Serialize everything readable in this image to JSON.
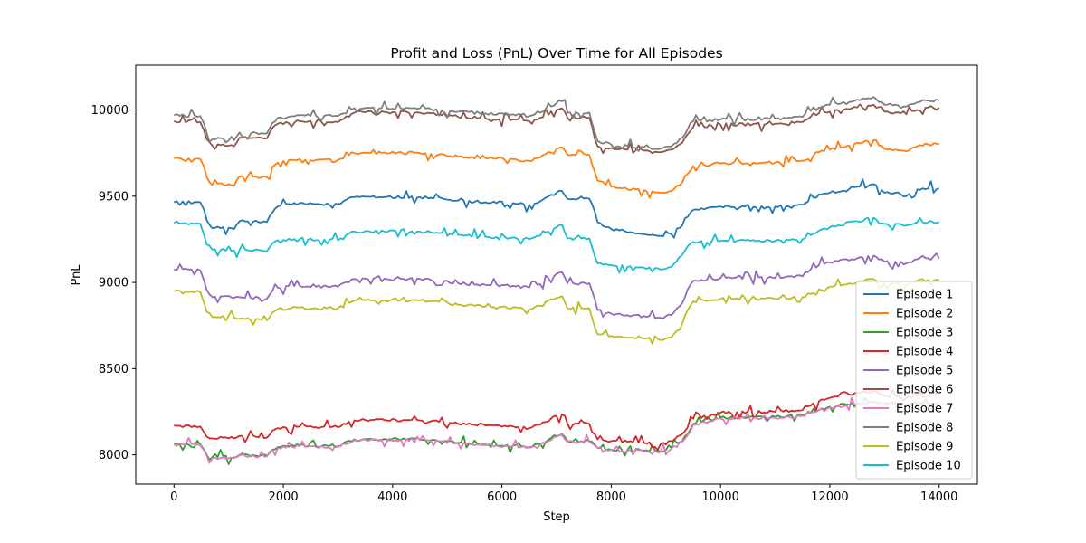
{
  "chart_data": {
    "type": "line",
    "title": "Profit and Loss (PnL) Over Time for All Episodes",
    "xlabel": "Step",
    "ylabel": "PnL",
    "xlim": [
      -700,
      14700
    ],
    "ylim": [
      7830,
      10260
    ],
    "xticks": [
      0,
      2000,
      4000,
      6000,
      8000,
      10000,
      12000,
      14000
    ],
    "yticks": [
      8000,
      8500,
      9000,
      9500,
      10000
    ],
    "grid": false,
    "legend_position": "lower-right",
    "series": [
      {
        "name": "Episode 1",
        "color": "#1f77b4",
        "x": [
          0,
          480,
          550,
          600,
          700,
          900,
          1100,
          1200,
          1700,
          1800,
          1900,
          2300,
          2600,
          3000,
          3300,
          3500,
          4500,
          4700,
          5200,
          5700,
          6200,
          6500,
          6700,
          7000,
          7100,
          7200,
          7600,
          7700,
          7750,
          8000,
          8300,
          8600,
          8900,
          9100,
          9300,
          9400,
          9500,
          10000,
          11000,
          11500,
          11800,
          12000,
          12500,
          12800,
          13000,
          13200,
          13400,
          13600,
          13800,
          14000
        ],
        "y": [
          9465,
          9465,
          9420,
          9360,
          9315,
          9320,
          9310,
          9355,
          9350,
          9405,
          9440,
          9460,
          9455,
          9455,
          9495,
          9497,
          9495,
          9490,
          9475,
          9465,
          9460,
          9450,
          9470,
          9520,
          9530,
          9485,
          9485,
          9410,
          9350,
          9310,
          9290,
          9280,
          9270,
          9280,
          9330,
          9380,
          9420,
          9440,
          9440,
          9450,
          9510,
          9520,
          9555,
          9570,
          9520,
          9520,
          9500,
          9540,
          9545,
          9545
        ]
      },
      {
        "name": "Episode 2",
        "color": "#ff7f0e",
        "x": [
          0,
          480,
          550,
          600,
          700,
          900,
          1100,
          1200,
          1700,
          1800,
          1900,
          2300,
          2600,
          3000,
          3300,
          3500,
          4500,
          4700,
          5200,
          5700,
          6200,
          6500,
          6700,
          7000,
          7100,
          7200,
          7600,
          7700,
          7750,
          8000,
          8300,
          8600,
          8900,
          9100,
          9300,
          9400,
          9500,
          10000,
          11000,
          11500,
          11800,
          12000,
          12500,
          12800,
          13000,
          13200,
          13400,
          13600,
          13800,
          14000
        ],
        "y": [
          9720,
          9715,
          9670,
          9610,
          9565,
          9570,
          9560,
          9615,
          9610,
          9670,
          9695,
          9715,
          9710,
          9710,
          9750,
          9752,
          9750,
          9745,
          9730,
          9720,
          9715,
          9705,
          9725,
          9775,
          9785,
          9740,
          9740,
          9640,
          9590,
          9555,
          9540,
          9535,
          9520,
          9530,
          9580,
          9630,
          9675,
          9690,
          9695,
          9705,
          9755,
          9770,
          9810,
          9825,
          9775,
          9770,
          9760,
          9790,
          9800,
          9800
        ]
      },
      {
        "name": "Episode 3",
        "color": "#2ca02c",
        "x": [
          0,
          480,
          550,
          600,
          700,
          900,
          1100,
          1200,
          1700,
          1800,
          1900,
          2300,
          2600,
          3000,
          3300,
          3500,
          4500,
          4700,
          5200,
          5700,
          6200,
          6500,
          6700,
          7000,
          7100,
          7200,
          7600,
          7700,
          7750,
          8000,
          8300,
          8600,
          8900,
          9100,
          9300,
          9400,
          9500,
          10000,
          11000,
          11500,
          11800,
          12000,
          12500,
          12800,
          13000,
          13200,
          13400,
          13600,
          13800,
          14000
        ],
        "y": [
          8065,
          8060,
          8030,
          8000,
          7985,
          7990,
          7985,
          8000,
          7995,
          8030,
          8045,
          8055,
          8050,
          8050,
          8090,
          8092,
          8090,
          8085,
          8070,
          8060,
          8055,
          8045,
          8065,
          8110,
          8120,
          8080,
          8080,
          8060,
          8040,
          8030,
          8030,
          8025,
          8020,
          8040,
          8080,
          8120,
          8180,
          8215,
          8220,
          8230,
          8260,
          8280,
          8300,
          8310,
          8300,
          8300,
          8295,
          8300,
          8300,
          8300
        ]
      },
      {
        "name": "Episode 4",
        "color": "#d62728",
        "x": [
          0,
          480,
          550,
          600,
          700,
          900,
          1100,
          1200,
          1700,
          1800,
          1900,
          2300,
          2600,
          3000,
          3300,
          3500,
          4500,
          4700,
          5200,
          5700,
          6200,
          6500,
          6700,
          7000,
          7100,
          7200,
          7600,
          7700,
          7750,
          8000,
          8300,
          8600,
          8900,
          9100,
          9300,
          9400,
          9500,
          10000,
          11000,
          11500,
          11800,
          12000,
          12500,
          12800,
          13000,
          13200,
          13400,
          13600,
          13800,
          14000
        ],
        "y": [
          8170,
          8165,
          8130,
          8105,
          8095,
          8100,
          8095,
          8110,
          8100,
          8140,
          8155,
          8165,
          8160,
          8160,
          8200,
          8202,
          8200,
          8195,
          8180,
          8170,
          8165,
          8155,
          8175,
          8225,
          8235,
          8180,
          8180,
          8120,
          8090,
          8080,
          8075,
          8070,
          8060,
          8080,
          8120,
          8160,
          8210,
          8245,
          8250,
          8260,
          8310,
          8330,
          8360,
          8370,
          8340,
          8340,
          8330,
          8340,
          8345,
          8345
        ]
      },
      {
        "name": "Episode 5",
        "color": "#9467bd",
        "x": [
          0,
          480,
          550,
          600,
          700,
          900,
          1100,
          1200,
          1700,
          1800,
          1900,
          2300,
          2600,
          3000,
          3300,
          3500,
          4500,
          4700,
          5200,
          5700,
          6200,
          6500,
          6700,
          7000,
          7100,
          7200,
          7600,
          7700,
          7750,
          8000,
          8300,
          8600,
          8900,
          9100,
          9300,
          9400,
          9500,
          10000,
          11000,
          11500,
          11800,
          12000,
          12500,
          12800,
          13000,
          13200,
          13400,
          13600,
          13800,
          14000
        ],
        "y": [
          9075,
          9070,
          9010,
          8955,
          8915,
          8920,
          8910,
          8915,
          8905,
          8950,
          8970,
          8980,
          8975,
          8975,
          9020,
          9022,
          9020,
          9015,
          8995,
          8985,
          8980,
          8970,
          8990,
          9050,
          9060,
          8995,
          8995,
          8900,
          8840,
          8820,
          8810,
          8805,
          8795,
          8810,
          8880,
          8960,
          9010,
          9025,
          9025,
          9035,
          9100,
          9115,
          9140,
          9155,
          9120,
          9120,
          9110,
          9135,
          9140,
          9140
        ]
      },
      {
        "name": "Episode 6",
        "color": "#8c564b",
        "x": [
          0,
          480,
          550,
          600,
          700,
          900,
          1100,
          1200,
          1700,
          1800,
          1900,
          2300,
          2600,
          3000,
          3300,
          3500,
          4500,
          4700,
          5200,
          5700,
          6200,
          6500,
          6700,
          7000,
          7100,
          7200,
          7600,
          7700,
          7750,
          8000,
          8300,
          8600,
          8900,
          9100,
          9300,
          9400,
          9500,
          10000,
          11000,
          11500,
          11800,
          12000,
          12500,
          12800,
          13000,
          13200,
          13400,
          13600,
          13800,
          14000
        ],
        "y": [
          9935,
          9930,
          9880,
          9830,
          9795,
          9800,
          9790,
          9840,
          9835,
          9895,
          9920,
          9935,
          9930,
          9930,
          9985,
          9987,
          9985,
          9980,
          9960,
          9950,
          9945,
          9935,
          9955,
          10000,
          10010,
          9955,
          9955,
          9830,
          9790,
          9780,
          9770,
          9765,
          9755,
          9770,
          9810,
          9860,
          9900,
          9915,
          9920,
          9930,
          9980,
          9990,
          10015,
          10030,
          9990,
          9985,
          9975,
          10000,
          10015,
          10015
        ]
      },
      {
        "name": "Episode 7",
        "color": "#e377c2",
        "x": [
          0,
          480,
          550,
          600,
          700,
          900,
          1100,
          1200,
          1700,
          1800,
          1900,
          2300,
          2600,
          3000,
          3300,
          3500,
          4500,
          4700,
          5200,
          5700,
          6200,
          6500,
          6700,
          7000,
          7100,
          7200,
          7600,
          7700,
          7750,
          8000,
          8300,
          8600,
          8900,
          9100,
          9300,
          9400,
          9500,
          10000,
          11000,
          11500,
          11800,
          12000,
          12500,
          12800,
          13000,
          13200,
          13400,
          13600,
          13800,
          14000
        ],
        "y": [
          8060,
          8055,
          8025,
          7995,
          7980,
          7985,
          7980,
          7995,
          7990,
          8030,
          8040,
          8050,
          8045,
          8045,
          8085,
          8087,
          8085,
          8080,
          8065,
          8055,
          8050,
          8040,
          8060,
          8105,
          8115,
          8075,
          8075,
          8055,
          8040,
          8030,
          8025,
          8020,
          8015,
          8035,
          8075,
          8115,
          8175,
          8210,
          8215,
          8225,
          8260,
          8275,
          8295,
          8305,
          8295,
          8295,
          8290,
          8295,
          8295,
          8295
        ]
      },
      {
        "name": "Episode 8",
        "color": "#7f7f7f",
        "x": [
          0,
          480,
          550,
          600,
          700,
          900,
          1100,
          1200,
          1700,
          1800,
          1900,
          2300,
          2600,
          3000,
          3300,
          3500,
          4500,
          4700,
          5200,
          5700,
          6200,
          6500,
          6700,
          7000,
          7100,
          7200,
          7600,
          7700,
          7750,
          8000,
          8300,
          8600,
          8900,
          9100,
          9300,
          9400,
          9500,
          10000,
          11000,
          11500,
          11800,
          12000,
          12500,
          12800,
          13000,
          13200,
          13400,
          13600,
          13800,
          14000
        ],
        "y": [
          9970,
          9965,
          9920,
          9865,
          9830,
          9835,
          9825,
          9870,
          9865,
          9925,
          9955,
          9970,
          9965,
          9965,
          10010,
          10012,
          10010,
          10005,
          9990,
          9980,
          9975,
          9965,
          9985,
          10040,
          10050,
          9985,
          9985,
          9870,
          9820,
          9800,
          9790,
          9785,
          9775,
          9790,
          9840,
          9890,
          9935,
          9945,
          9950,
          9960,
          10015,
          10030,
          10060,
          10075,
          10030,
          10030,
          10020,
          10045,
          10055,
          10055
        ]
      },
      {
        "name": "Episode 9",
        "color": "#bcbd22",
        "x": [
          0,
          480,
          550,
          600,
          700,
          900,
          1100,
          1200,
          1700,
          1800,
          1900,
          2300,
          2600,
          3000,
          3300,
          3500,
          4500,
          4700,
          5200,
          5700,
          6200,
          6500,
          6700,
          7000,
          7100,
          7200,
          7600,
          7700,
          7750,
          8000,
          8300,
          8600,
          8900,
          9100,
          9300,
          9400,
          9500,
          10000,
          11000,
          11500,
          11800,
          12000,
          12500,
          12800,
          13000,
          13200,
          13400,
          13600,
          13800,
          14000
        ],
        "y": [
          8950,
          8945,
          8880,
          8830,
          8800,
          8805,
          8795,
          8790,
          8780,
          8825,
          8845,
          8855,
          8850,
          8850,
          8895,
          8897,
          8895,
          8890,
          8870,
          8860,
          8855,
          8845,
          8865,
          8910,
          8920,
          8850,
          8850,
          8740,
          8700,
          8690,
          8680,
          8675,
          8665,
          8680,
          8760,
          8840,
          8890,
          8905,
          8905,
          8915,
          8960,
          8975,
          9000,
          9020,
          8995,
          8995,
          8985,
          9010,
          9015,
          9015
        ]
      },
      {
        "name": "Episode 10",
        "color": "#17becf",
        "x": [
          0,
          480,
          550,
          600,
          700,
          900,
          1100,
          1200,
          1700,
          1800,
          1900,
          2300,
          2600,
          3000,
          3300,
          3500,
          4500,
          4700,
          5200,
          5700,
          6200,
          6500,
          6700,
          7000,
          7100,
          7200,
          7600,
          7700,
          7750,
          8000,
          8300,
          8600,
          8900,
          9100,
          9300,
          9400,
          9500,
          10000,
          11000,
          11500,
          11800,
          12000,
          12500,
          12800,
          13000,
          13200,
          13400,
          13600,
          13800,
          14000
        ],
        "y": [
          9345,
          9340,
          9275,
          9220,
          9190,
          9195,
          9185,
          9190,
          9180,
          9225,
          9245,
          9250,
          9245,
          9245,
          9295,
          9297,
          9295,
          9290,
          9275,
          9265,
          9260,
          9250,
          9270,
          9320,
          9335,
          9255,
          9255,
          9150,
          9110,
          9100,
          9090,
          9085,
          9075,
          9090,
          9160,
          9210,
          9235,
          9240,
          9240,
          9250,
          9300,
          9320,
          9355,
          9375,
          9340,
          9340,
          9330,
          9350,
          9350,
          9350
        ]
      }
    ]
  }
}
